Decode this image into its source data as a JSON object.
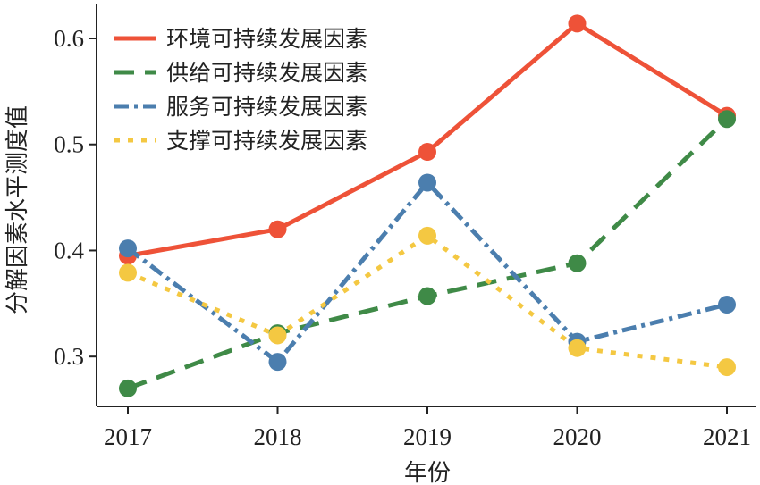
{
  "chart_data": {
    "type": "line",
    "title": "",
    "xlabel": "年份",
    "ylabel": "分解因素水平测度值",
    "categories": [
      "2017",
      "2018",
      "2019",
      "2020",
      "2021"
    ],
    "ylim": [
      0.253,
      0.632
    ],
    "yticks": [
      0.3,
      0.4,
      0.5,
      0.6
    ],
    "ytick_labels": [
      "0.3",
      "0.4",
      "0.5",
      "0.6"
    ],
    "grid": false,
    "legend_position": "top-left",
    "series": [
      {
        "name": "环境可持续发展因素",
        "color": "#ee5238",
        "dash": "",
        "values": [
          0.395,
          0.42,
          0.493,
          0.614,
          0.527
        ]
      },
      {
        "name": "供给可持续发展因素",
        "color": "#3f8a47",
        "dash": "22,12",
        "values": [
          0.27,
          0.322,
          0.357,
          0.388,
          0.524
        ]
      },
      {
        "name": "服务可持续发展因素",
        "color": "#4b7eae",
        "dash": "16,6,4,6",
        "values": [
          0.402,
          0.295,
          0.464,
          0.314,
          0.349
        ]
      },
      {
        "name": "支撑可持续发展因素",
        "color": "#f4c842",
        "dash": "6,9",
        "values": [
          0.379,
          0.32,
          0.414,
          0.308,
          0.29
        ]
      }
    ]
  }
}
